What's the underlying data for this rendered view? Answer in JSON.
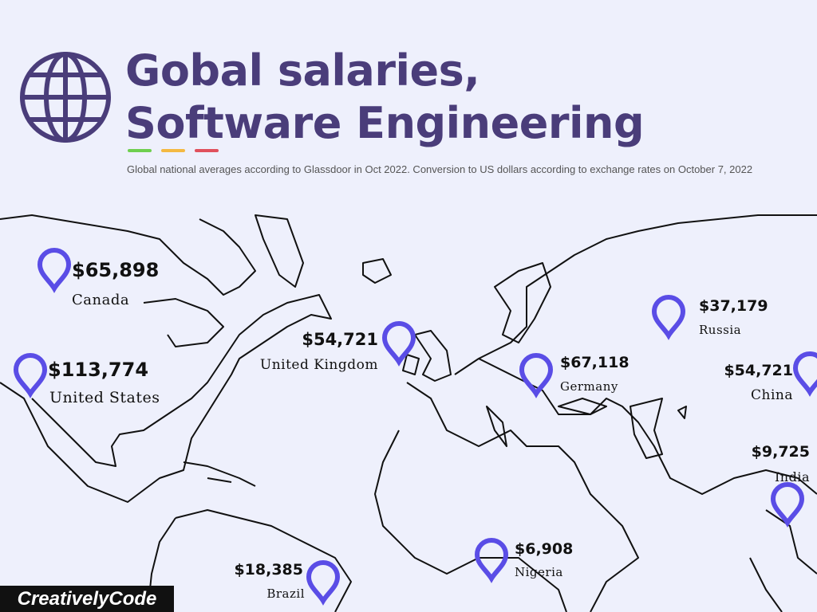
{
  "header": {
    "title": "Gobal salaries, Software Engineering",
    "subtitle": "Global national averages according to Glassdoor in Oct 2022. Conversion to US dollars according to exchange rates on October 7, 2022"
  },
  "markers": [
    {
      "value": "$65,898",
      "country": "Canada"
    },
    {
      "value": "$113,774",
      "country": "United States"
    },
    {
      "value": "$54,721",
      "country": "United Kingdom"
    },
    {
      "value": "$67,118",
      "country": "Germany"
    },
    {
      "value": "$37,179",
      "country": "Russia"
    },
    {
      "value": "$54,721",
      "country": "China"
    },
    {
      "value": "$9,725",
      "country": "India"
    },
    {
      "value": "$6,908",
      "country": "Nigeria"
    },
    {
      "value": "$18,385",
      "country": "Brazil"
    }
  ],
  "brand": "CreativelyCode"
}
